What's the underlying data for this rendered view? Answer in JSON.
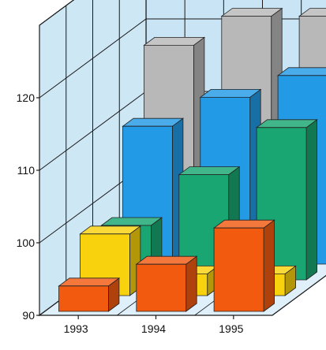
{
  "chart_data": {
    "type": "bar",
    "categories": [
      "1993",
      "1994",
      "1995"
    ],
    "series": [
      {
        "values": [
          93.5,
          96.5,
          101.5
        ],
        "color": "#f25a10"
      },
      {
        "values": [
          98.5,
          93.0,
          93.0
        ],
        "color": "#f8d20c"
      },
      {
        "values": [
          97.5,
          104.5,
          111.0
        ],
        "color": "#19a672"
      },
      {
        "values": [
          109.0,
          113.0,
          116.0
        ],
        "color": "#229ae6"
      },
      {
        "values": [
          118.0,
          122.0,
          122.0
        ],
        "color": "#b8b8b8"
      }
    ],
    "ylim": [
      90,
      130
    ],
    "yticks": [
      90,
      100,
      110,
      120
    ],
    "ytick_labels": [
      "90",
      "100",
      "110",
      "120"
    ],
    "grid": true
  },
  "colors": {
    "wall": "#c9e4f4",
    "floor": "#dff0fa",
    "grid_line": "#1a1a1a"
  }
}
